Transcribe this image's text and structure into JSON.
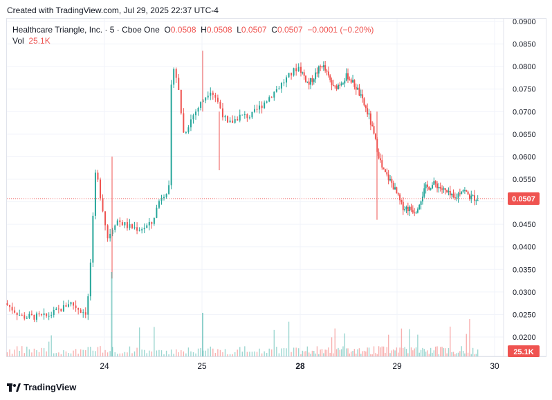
{
  "header": {
    "created_text": "Created with TradingView.com, Jul 29, 2025 22:37 UTC-4"
  },
  "legend": {
    "symbol": "Healthcare Triangle, Inc. · 5 · Cboe One",
    "o_label": "O",
    "o_value": "0.0508",
    "h_label": "H",
    "h_value": "0.0508",
    "l_label": "L",
    "l_value": "0.0507",
    "c_label": "C",
    "c_value": "0.0507",
    "change": "−0.0001 (−0.20%)",
    "vol_label": "Vol",
    "vol_value": "25.1K"
  },
  "footer": {
    "brand": "TradingView"
  },
  "colors": {
    "up": "#26a69a",
    "down": "#ef5350",
    "grid": "#f0f3fa",
    "axis_text": "#131722"
  },
  "chart_data": {
    "type": "candlestick",
    "x_ticks": [
      "24",
      "25",
      "28",
      "29",
      "30"
    ],
    "y_ticks": [
      "0.0900",
      "0.0850",
      "0.0800",
      "0.0750",
      "0.0700",
      "0.0650",
      "0.0600",
      "0.0550",
      "0.0500",
      "0.0450",
      "0.0400",
      "0.0350",
      "0.0300",
      "0.0250",
      "0.0200"
    ],
    "ylim": [
      0.0185,
      0.0905
    ],
    "last_price": 0.0507,
    "last_price_label": "0.0507",
    "last_volume_label": "25.1K",
    "grid": true,
    "anchors": [
      {
        "t": 0.0,
        "p": 0.0275
      },
      {
        "t": 0.06,
        "p": 0.0245
      },
      {
        "t": 0.14,
        "p": 0.0245
      },
      {
        "t": 0.2,
        "p": 0.0265
      },
      {
        "t": 0.22,
        "p": 0.0278
      },
      {
        "t": 0.26,
        "p": 0.0258
      },
      {
        "t": 0.28,
        "p": 0.0255
      },
      {
        "t": 0.29,
        "p": 0.034
      },
      {
        "t": 0.31,
        "p": 0.057
      },
      {
        "t": 0.33,
        "p": 0.05
      },
      {
        "t": 0.35,
        "p": 0.042
      },
      {
        "t": 0.38,
        "p": 0.046
      },
      {
        "t": 0.42,
        "p": 0.0445
      },
      {
        "t": 0.46,
        "p": 0.044
      },
      {
        "t": 0.5,
        "p": 0.045
      },
      {
        "t": 0.53,
        "p": 0.051
      },
      {
        "t": 0.56,
        "p": 0.053
      },
      {
        "t": 0.57,
        "p": 0.082
      },
      {
        "t": 0.59,
        "p": 0.076
      },
      {
        "t": 0.61,
        "p": 0.065
      },
      {
        "t": 0.64,
        "p": 0.069
      },
      {
        "t": 0.67,
        "p": 0.072
      },
      {
        "t": 0.7,
        "p": 0.075
      },
      {
        "t": 0.72,
        "p": 0.073
      },
      {
        "t": 0.76,
        "p": 0.067
      },
      {
        "t": 0.8,
        "p": 0.069
      },
      {
        "t": 0.84,
        "p": 0.069
      },
      {
        "t": 1.0,
        "p": 0.08
      },
      {
        "t": 1.05,
        "p": 0.076
      },
      {
        "t": 1.12,
        "p": 0.0805
      },
      {
        "t": 1.18,
        "p": 0.075
      },
      {
        "t": 1.25,
        "p": 0.078
      },
      {
        "t": 1.3,
        "p": 0.075
      },
      {
        "t": 1.36,
        "p": 0.069
      },
      {
        "t": 1.39,
        "p": 0.064
      },
      {
        "t": 1.43,
        "p": 0.057
      },
      {
        "t": 1.48,
        "p": 0.054
      },
      {
        "t": 1.53,
        "p": 0.049
      },
      {
        "t": 1.6,
        "p": 0.048
      },
      {
        "t": 1.65,
        "p": 0.053
      },
      {
        "t": 1.7,
        "p": 0.054
      },
      {
        "t": 1.76,
        "p": 0.052
      },
      {
        "t": 1.8,
        "p": 0.0505
      },
      {
        "t": 1.84,
        "p": 0.053
      },
      {
        "t": 1.88,
        "p": 0.051
      },
      {
        "t": 1.92,
        "p": 0.0508
      }
    ]
  }
}
